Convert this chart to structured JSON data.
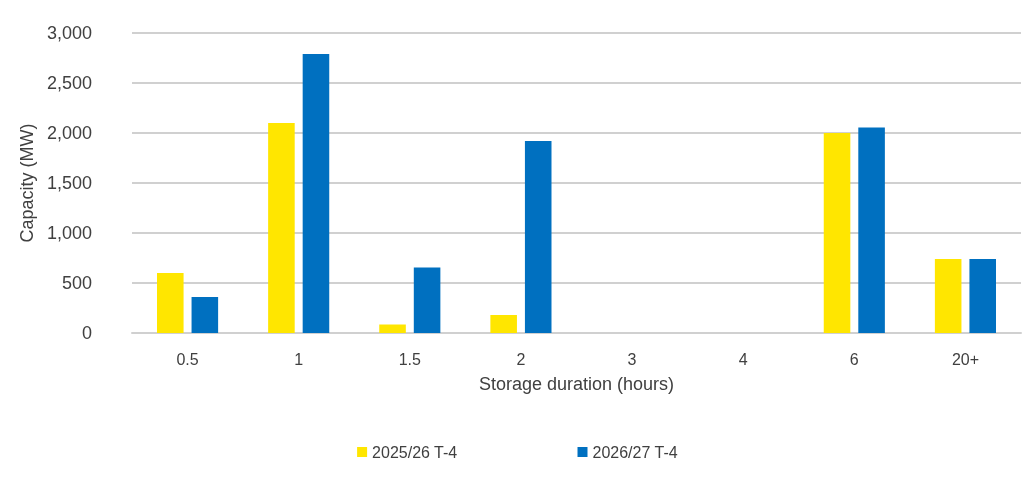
{
  "chart_data": {
    "type": "bar",
    "xlabel": "Storage duration (hours)",
    "ylabel": "Capacity (MW)",
    "categories": [
      "0.5",
      "1",
      "1.5",
      "2",
      "3",
      "4",
      "6",
      "20+"
    ],
    "series": [
      {
        "name": "2025/26 T-4",
        "color": "#ffe600",
        "values": [
          600,
          2100,
          85,
          180,
          0,
          0,
          2000,
          740
        ]
      },
      {
        "name": "2026/27 T-4",
        "color": "#0070c0",
        "values": [
          360,
          2790,
          655,
          1920,
          0,
          0,
          2055,
          740
        ]
      }
    ],
    "ylim": [
      0,
      3000
    ],
    "yticks": [
      {
        "value": 0,
        "label": "0"
      },
      {
        "value": 500,
        "label": "500"
      },
      {
        "value": 1000,
        "label": "1,000"
      },
      {
        "value": 1500,
        "label": "1,500"
      },
      {
        "value": 2000,
        "label": "2,000"
      },
      {
        "value": 2500,
        "label": "2,500"
      },
      {
        "value": 3000,
        "label": "3,000"
      }
    ],
    "grid": "y",
    "legend": "bottom"
  }
}
